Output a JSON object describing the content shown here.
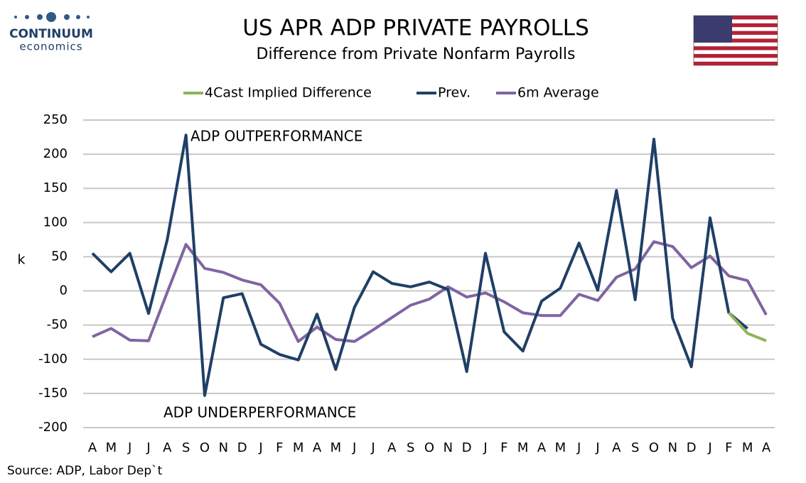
{
  "logo": {
    "name": "CONTINUUM",
    "tagline": "economics"
  },
  "source": "Source: ADP, Labor Dep`t",
  "chart_data": {
    "type": "line",
    "title": "US APR ADP PRIVATE PAYROLLS",
    "subtitle": "Difference from Private Nonfarm Payrolls",
    "y_label": "k",
    "annotations": [
      "ADP OUTPERFORMANCE",
      "ADP UNDERPERFORMANCE"
    ],
    "categories": [
      "A",
      "M",
      "J",
      "J",
      "A",
      "S",
      "O",
      "N",
      "D",
      "J",
      "F",
      "M",
      "A",
      "M",
      "J",
      "J",
      "A",
      "S",
      "O",
      "N",
      "D",
      "J",
      "F",
      "M",
      "A",
      "M",
      "J",
      "J",
      "A",
      "S",
      "O",
      "N",
      "D",
      "J",
      "F",
      "M",
      "A"
    ],
    "series": [
      {
        "name": "4Cast Implied Difference",
        "color": "#8db55a",
        "values": [
          null,
          null,
          null,
          null,
          null,
          null,
          null,
          null,
          null,
          null,
          null,
          null,
          null,
          null,
          null,
          null,
          null,
          null,
          null,
          null,
          null,
          null,
          null,
          null,
          null,
          null,
          null,
          null,
          null,
          null,
          null,
          null,
          null,
          null,
          -32,
          -62,
          -73
        ]
      },
      {
        "name": "Prev.",
        "color": "#1f3f66",
        "values": [
          55,
          28,
          55,
          -33,
          75,
          228,
          -153,
          -10,
          -4,
          -78,
          -93,
          -101,
          -34,
          -115,
          -24,
          28,
          11,
          6,
          13,
          2,
          -118,
          55,
          -60,
          -88,
          -15,
          4,
          70,
          1,
          147,
          -13,
          222,
          -40,
          -111,
          107,
          -32,
          -55,
          null
        ]
      },
      {
        "name": "6m Average",
        "color": "#8064a2",
        "values": [
          -67,
          -55,
          -72,
          -73,
          -2,
          68,
          33,
          27,
          16,
          9,
          -18,
          -74,
          -53,
          -71,
          -74,
          -57,
          -39,
          -21,
          -12,
          6,
          -9,
          -3,
          -16,
          -32,
          -36,
          -36,
          -5,
          -14,
          20,
          32,
          72,
          65,
          34,
          51,
          22,
          15,
          -35
        ]
      }
    ],
    "ylim": [
      -200,
      250
    ],
    "yticks": [
      -200,
      -150,
      -100,
      -50,
      0,
      50,
      100,
      150,
      200,
      250
    ],
    "grid": true,
    "legend": "top"
  }
}
